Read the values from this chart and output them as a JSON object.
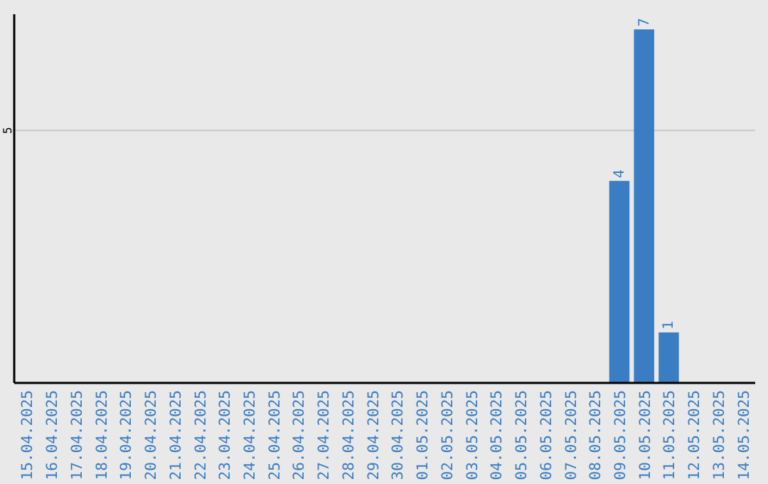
{
  "chart_data": {
    "type": "bar",
    "categories": [
      "15.04.2025",
      "16.04.2025",
      "17.04.2025",
      "18.04.2025",
      "19.04.2025",
      "20.04.2025",
      "21.04.2025",
      "22.04.2025",
      "23.04.2025",
      "24.04.2025",
      "25.04.2025",
      "26.04.2025",
      "27.04.2025",
      "28.04.2025",
      "29.04.2025",
      "30.04.2025",
      "01.05.2025",
      "02.05.2025",
      "03.05.2025",
      "04.05.2025",
      "05.05.2025",
      "06.05.2025",
      "07.05.2025",
      "08.05.2025",
      "09.05.2025",
      "10.05.2025",
      "11.05.2025",
      "12.05.2025",
      "13.05.2025",
      "14.05.2025"
    ],
    "values": [
      null,
      null,
      null,
      null,
      null,
      null,
      null,
      null,
      null,
      null,
      null,
      null,
      null,
      null,
      null,
      null,
      null,
      null,
      null,
      null,
      null,
      null,
      null,
      null,
      4,
      7,
      1,
      null,
      null,
      null
    ],
    "value_labels": [
      null,
      null,
      null,
      null,
      null,
      null,
      null,
      null,
      null,
      null,
      null,
      null,
      null,
      null,
      null,
      null,
      null,
      null,
      null,
      null,
      null,
      null,
      null,
      null,
      "4",
      "7",
      "1",
      null,
      null,
      null
    ],
    "color": "#3a7dc2",
    "ylim": [
      0,
      7.3
    ],
    "yticks": [
      5
    ],
    "grid": "y"
  }
}
